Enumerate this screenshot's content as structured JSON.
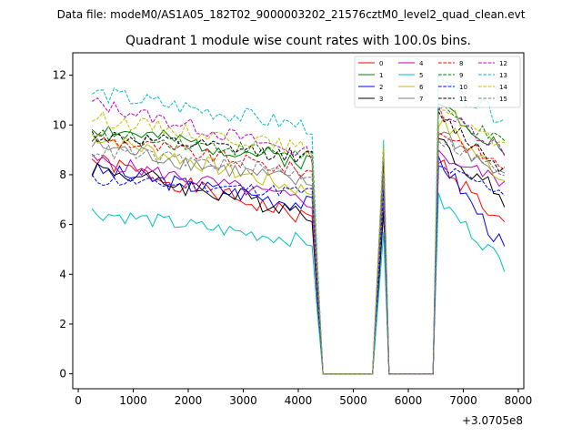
{
  "suptitle": "Data file: modeM0/AS1A05_182T02_9000003202_21576cztM0_level2_quad_clean.evt",
  "chart_data": {
    "type": "line",
    "title": "Quadrant 1 module wise count rates with 100.0s bins.",
    "xlabel": "",
    "ylabel": "",
    "x_offset_label": "+3.0705e8",
    "xlim": [
      -100,
      8100
    ],
    "ylim": [
      -0.6,
      12.9
    ],
    "xticks": [
      0,
      1000,
      2000,
      3000,
      4000,
      5000,
      6000,
      7000,
      8000
    ],
    "xtick_labels": [
      "0",
      "1000",
      "2000",
      "3000",
      "4000",
      "5000",
      "6000",
      "7000",
      "8000"
    ],
    "yticks": [
      0,
      2,
      4,
      6,
      8,
      10,
      12
    ],
    "ytick_labels": [
      "0",
      "2",
      "4",
      "6",
      "8",
      "10",
      "12"
    ],
    "legend_position": "top-right",
    "segments": [
      {
        "x_start": 250,
        "x_end": 4250,
        "step": 100,
        "kind": "data"
      },
      {
        "x_start": 4350,
        "x_end": 4350,
        "kind": "drop"
      },
      {
        "x_start": 4450,
        "x_end": 5350,
        "step": 100,
        "kind": "zero"
      },
      {
        "x_start": 5550,
        "x_end": 5550,
        "kind": "spike"
      },
      {
        "x_start": 5650,
        "x_end": 6450,
        "step": 100,
        "kind": "zero"
      },
      {
        "x_start": 6550,
        "x_end": 7750,
        "step": 100,
        "kind": "data2"
      }
    ],
    "series": [
      {
        "name": "0",
        "color": "#ff0000",
        "dash": "solid",
        "start": 8.6,
        "end": 6.2,
        "spike": 7.6,
        "post_start": 8.6,
        "post_end": 5.9,
        "amp": 0.35,
        "seed": 1
      },
      {
        "name": "1",
        "color": "#008000",
        "dash": "solid",
        "start": 9.9,
        "end": 8.5,
        "spike": 8.5,
        "post_start": 10.9,
        "post_end": 9.0,
        "amp": 0.35,
        "seed": 2
      },
      {
        "name": "2",
        "color": "#0000ff",
        "dash": "solid",
        "start": 8.2,
        "end": 6.8,
        "spike": 7.0,
        "post_start": 8.7,
        "post_end": 5.0,
        "amp": 0.35,
        "seed": 3
      },
      {
        "name": "3",
        "color": "#000000",
        "dash": "solid",
        "start": 8.3,
        "end": 6.5,
        "spike": 6.5,
        "post_start": 9.3,
        "post_end": 7.0,
        "amp": 0.4,
        "seed": 4
      },
      {
        "name": "4",
        "color": "#bf00bf",
        "dash": "solid",
        "start": 8.6,
        "end": 6.9,
        "spike": 7.2,
        "post_start": 8.8,
        "post_end": 7.7,
        "amp": 0.3,
        "seed": 5
      },
      {
        "name": "5",
        "color": "#00bfbf",
        "dash": "solid",
        "start": 6.5,
        "end": 5.3,
        "spike": 5.7,
        "post_start": 7.0,
        "post_end": 4.4,
        "amp": 0.3,
        "seed": 6
      },
      {
        "name": "6",
        "color": "#bfbf00",
        "dash": "solid",
        "start": 9.6,
        "end": 7.3,
        "spike": 7.4,
        "post_start": 10.2,
        "post_end": 7.8,
        "amp": 0.35,
        "seed": 7
      },
      {
        "name": "7",
        "color": "#808080",
        "dash": "solid",
        "start": 9.2,
        "end": 7.6,
        "spike": 7.8,
        "post_start": 9.8,
        "post_end": 7.8,
        "amp": 0.35,
        "seed": 8
      },
      {
        "name": "8",
        "color": "#ff0000",
        "dash": "dashed",
        "start": 9.5,
        "end": 8.1,
        "spike": 8.2,
        "post_start": 9.8,
        "post_end": 8.3,
        "amp": 0.3,
        "seed": 9
      },
      {
        "name": "9",
        "color": "#008000",
        "dash": "dashed",
        "start": 9.6,
        "end": 8.8,
        "spike": 8.9,
        "post_start": 10.6,
        "post_end": 9.2,
        "amp": 0.3,
        "seed": 10
      },
      {
        "name": "10",
        "color": "#0000ff",
        "dash": "dashed",
        "start": 7.8,
        "end": 7.3,
        "spike": 7.4,
        "post_start": 8.3,
        "post_end": 7.3,
        "amp": 0.25,
        "seed": 11
      },
      {
        "name": "11",
        "color": "#000000",
        "dash": "dashed",
        "start": 9.6,
        "end": 8.7,
        "spike": 8.8,
        "post_start": 10.4,
        "post_end": 8.2,
        "amp": 0.3,
        "seed": 12
      },
      {
        "name": "12",
        "color": "#bf00bf",
        "dash": "dashed",
        "start": 10.9,
        "end": 8.8,
        "spike": 9.0,
        "post_start": 10.6,
        "post_end": 9.0,
        "amp": 0.3,
        "seed": 13
      },
      {
        "name": "13",
        "color": "#00bfbf",
        "dash": "dashed",
        "start": 11.3,
        "end": 9.9,
        "spike": 9.4,
        "post_start": 11.7,
        "post_end": 10.2,
        "amp": 0.35,
        "seed": 14
      },
      {
        "name": "14",
        "color": "#bfbf00",
        "dash": "dashed",
        "start": 10.3,
        "end": 9.0,
        "spike": 9.1,
        "post_start": 10.8,
        "post_end": 9.0,
        "amp": 0.3,
        "seed": 15
      },
      {
        "name": "15",
        "color": "#808080",
        "dash": "dashed",
        "start": 9.0,
        "end": 8.0,
        "spike": 8.1,
        "post_start": 9.5,
        "post_end": 8.0,
        "amp": 0.3,
        "seed": 16
      }
    ]
  }
}
